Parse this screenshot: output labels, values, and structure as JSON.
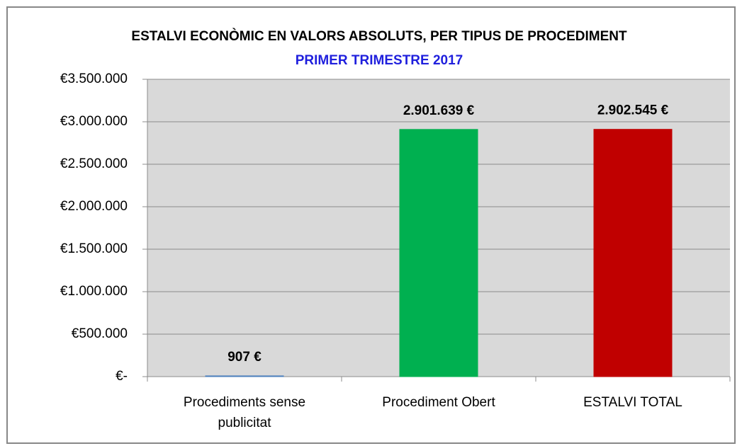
{
  "chart_data": {
    "type": "bar",
    "title": "ESTALVI ECONÒMIC EN VALORS ABSOLUTS, PER TIPUS DE PROCEDIMENT",
    "subtitle": "PRIMER TRIMESTRE 2017",
    "categories": [
      "Procediments sense publicitat",
      "Procediment Obert",
      "ESTALVI TOTAL"
    ],
    "values": [
      907,
      2901639,
      2902545
    ],
    "value_labels": [
      "907 €",
      "2.901.639 €",
      "2.902.545 €"
    ],
    "colors": [
      "#4f81bd",
      "#00b050",
      "#c00000"
    ],
    "ylim": [
      0,
      3500000
    ],
    "yticks": [
      {
        "value": 0,
        "label": "€-"
      },
      {
        "value": 500000,
        "label": "€500.000"
      },
      {
        "value": 1000000,
        "label": "€1.000.000"
      },
      {
        "value": 1500000,
        "label": "€1.500.000"
      },
      {
        "value": 2000000,
        "label": "€2.000.000"
      },
      {
        "value": 2500000,
        "label": "€2.500.000"
      },
      {
        "value": 3000000,
        "label": "€3.000.000"
      },
      {
        "value": 3500000,
        "label": "€3.500.000"
      }
    ],
    "grid": true
  }
}
